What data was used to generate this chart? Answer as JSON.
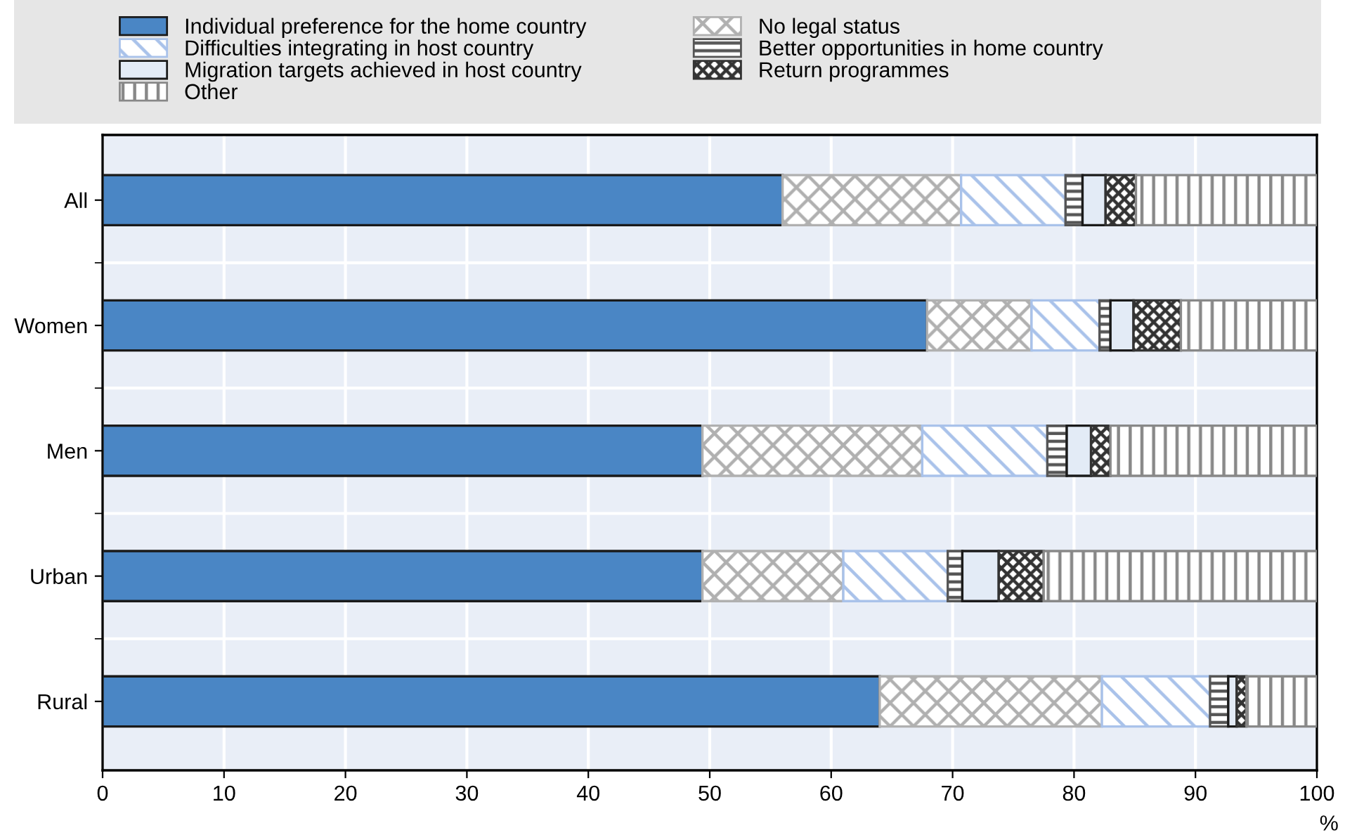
{
  "chart_data": {
    "type": "bar",
    "orientation": "horizontal",
    "stacked": true,
    "xlabel": "%",
    "categories": [
      "All",
      "Women",
      "Men",
      "Urban",
      "Rural"
    ],
    "series": [
      {
        "name": "Individual preference for the home country",
        "color": "#4a86c5",
        "values": [
          56.0,
          67.9,
          49.4,
          49.4,
          64.0
        ]
      },
      {
        "name": "No legal status",
        "color": "#b0b0b0",
        "values": [
          14.7,
          8.6,
          18.1,
          11.6,
          18.3
        ]
      },
      {
        "name": "Difficulties integrating in host country",
        "color": "#a9c2ea",
        "values": [
          8.6,
          5.6,
          10.3,
          8.6,
          8.9
        ]
      },
      {
        "name": "Better opportunities in home country",
        "color": "#555555",
        "values": [
          1.4,
          0.9,
          1.6,
          1.2,
          1.5
        ]
      },
      {
        "name": "Migration targets achieved in host country",
        "color": "#e3ebf6",
        "values": [
          1.9,
          1.9,
          2.0,
          3.0,
          0.7
        ]
      },
      {
        "name": "Return programmes",
        "color": "#333333",
        "values": [
          2.5,
          3.9,
          1.6,
          3.7,
          0.8
        ]
      },
      {
        "name": "Other",
        "color": "#888888",
        "values": [
          14.9,
          11.2,
          17.0,
          22.5,
          5.8
        ]
      }
    ],
    "xlim": [
      0,
      100
    ],
    "xticks": [
      0,
      10,
      20,
      30,
      40,
      50,
      60,
      70,
      80,
      90,
      100
    ],
    "grid": true,
    "legend": "top"
  }
}
